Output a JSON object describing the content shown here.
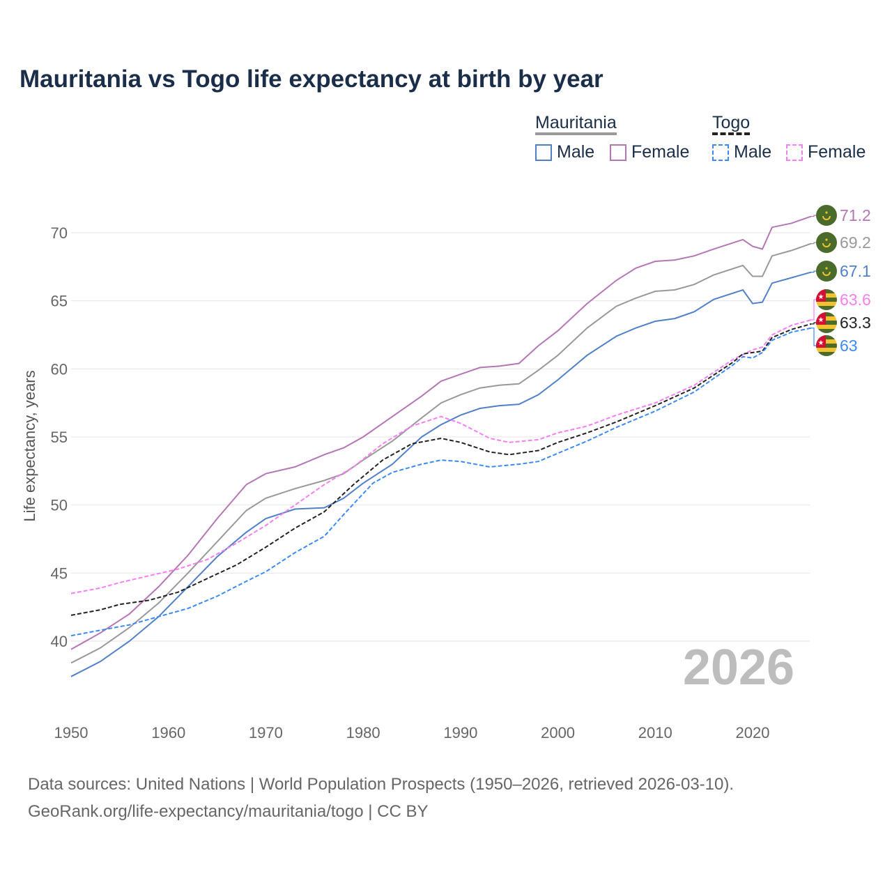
{
  "title": "Mauritania vs Togo life expectancy at birth by year",
  "legend": {
    "groups": [
      {
        "name": "Mauritania",
        "items": [
          "Male",
          "Female"
        ]
      },
      {
        "name": "Togo",
        "items": [
          "Male",
          "Female"
        ]
      }
    ]
  },
  "watermark_year": "2026",
  "source": {
    "line1": "Data sources: United Nations | World Population Prospects (1950–2026, retrieved 2026-03-10).",
    "line2": "GeoRank.org/life-expectancy/mauritania/togo | CC BY"
  },
  "chart_data": {
    "type": "line",
    "title": "Mauritania vs Togo life expectancy at birth by year",
    "xlabel": "",
    "ylabel": "Life expectancy, years",
    "xlim": [
      1950,
      2026
    ],
    "ylim": [
      36.5,
      72
    ],
    "xticks": [
      1950,
      1960,
      1970,
      1980,
      1990,
      2000,
      2010,
      2020
    ],
    "yticks": [
      40,
      45,
      50,
      55,
      60,
      65,
      70
    ],
    "grid": true,
    "series": [
      {
        "name": "Mauritania Female",
        "country": "Mauritania",
        "color": "#b576b5",
        "dash": false,
        "end_label": "71.2",
        "x": [
          1950,
          1953,
          1956,
          1959,
          1962,
          1965,
          1968,
          1970,
          1973,
          1976,
          1978,
          1980,
          1983,
          1986,
          1988,
          1990,
          1992,
          1994,
          1996,
          1998,
          2000,
          2003,
          2006,
          2008,
          2010,
          2012,
          2014,
          2016,
          2019,
          2020,
          2021,
          2022,
          2024,
          2026
        ],
        "y": [
          39.4,
          40.6,
          42.0,
          44.0,
          46.3,
          49.0,
          51.5,
          52.3,
          52.8,
          53.7,
          54.2,
          55.0,
          56.5,
          58.0,
          59.1,
          59.6,
          60.1,
          60.2,
          60.4,
          61.7,
          62.8,
          64.8,
          66.5,
          67.4,
          67.9,
          68.0,
          68.3,
          68.8,
          69.5,
          69.0,
          68.8,
          70.4,
          70.7,
          71.2
        ]
      },
      {
        "name": "Mauritania",
        "country": "Mauritania",
        "color": "#999999",
        "dash": false,
        "end_label": "69.2",
        "x": [
          1950,
          1953,
          1956,
          1959,
          1962,
          1965,
          1968,
          1970,
          1973,
          1976,
          1978,
          1980,
          1983,
          1986,
          1988,
          1990,
          1992,
          1994,
          1996,
          1998,
          2000,
          2003,
          2006,
          2008,
          2010,
          2012,
          2014,
          2016,
          2019,
          2020,
          2021,
          2022,
          2024,
          2026
        ],
        "y": [
          38.4,
          39.5,
          41.0,
          42.8,
          45.0,
          47.3,
          49.6,
          50.5,
          51.2,
          51.8,
          52.3,
          53.3,
          54.7,
          56.4,
          57.5,
          58.1,
          58.6,
          58.8,
          58.9,
          59.9,
          61.0,
          63.0,
          64.6,
          65.2,
          65.7,
          65.8,
          66.2,
          66.9,
          67.6,
          66.8,
          66.8,
          68.3,
          68.7,
          69.2
        ]
      },
      {
        "name": "Mauritania Male",
        "country": "Mauritania",
        "color": "#5080c8",
        "dash": false,
        "end_label": "67.1",
        "x": [
          1950,
          1953,
          1956,
          1959,
          1962,
          1965,
          1968,
          1970,
          1973,
          1976,
          1978,
          1980,
          1983,
          1986,
          1988,
          1990,
          1992,
          1994,
          1996,
          1998,
          2000,
          2003,
          2006,
          2008,
          2010,
          2012,
          2014,
          2016,
          2019,
          2020,
          2021,
          2022,
          2024,
          2026
        ],
        "y": [
          37.4,
          38.5,
          40.0,
          41.8,
          44.0,
          46.2,
          48.0,
          49.0,
          49.7,
          49.8,
          50.5,
          51.6,
          53.0,
          55.0,
          55.9,
          56.6,
          57.1,
          57.3,
          57.4,
          58.1,
          59.2,
          61.0,
          62.4,
          63.0,
          63.5,
          63.7,
          64.2,
          65.1,
          65.8,
          64.8,
          64.9,
          66.3,
          66.7,
          67.1
        ]
      },
      {
        "name": "Togo Female",
        "country": "Togo",
        "color": "#f57ff5",
        "dash": true,
        "end_label": "63.6",
        "x": [
          1950,
          1953,
          1955,
          1958,
          1961,
          1964,
          1967,
          1970,
          1973,
          1976,
          1979,
          1982,
          1985,
          1988,
          1990,
          1993,
          1995,
          1998,
          2000,
          2003,
          2006,
          2010,
          2014,
          2018,
          2020,
          2021,
          2022,
          2024,
          2026
        ],
        "y": [
          43.5,
          43.9,
          44.3,
          44.8,
          45.3,
          46.0,
          47.2,
          48.5,
          50.0,
          51.5,
          52.8,
          54.5,
          55.8,
          56.5,
          56.0,
          54.9,
          54.6,
          54.8,
          55.3,
          55.8,
          56.6,
          57.5,
          58.8,
          60.7,
          61.4,
          61.6,
          62.5,
          63.2,
          63.6
        ]
      },
      {
        "name": "Togo",
        "country": "Togo",
        "color": "#222222",
        "dash": true,
        "end_label": "63.3",
        "x": [
          1950,
          1953,
          1955,
          1958,
          1961,
          1964,
          1967,
          1970,
          1973,
          1976,
          1979,
          1982,
          1985,
          1988,
          1990,
          1993,
          1995,
          1998,
          2000,
          2003,
          2006,
          2010,
          2014,
          2018,
          2019,
          2021,
          2022,
          2024,
          2026
        ],
        "y": [
          41.9,
          42.3,
          42.7,
          43.0,
          43.6,
          44.6,
          45.6,
          46.9,
          48.3,
          49.5,
          51.5,
          53.3,
          54.5,
          54.9,
          54.6,
          53.9,
          53.7,
          54.0,
          54.6,
          55.3,
          56.1,
          57.3,
          58.6,
          60.5,
          61.1,
          61.3,
          62.3,
          62.9,
          63.3
        ]
      },
      {
        "name": "Togo Male",
        "country": "Togo",
        "color": "#3d8af7",
        "dash": true,
        "end_label": "63",
        "x": [
          1950,
          1953,
          1956,
          1959,
          1962,
          1965,
          1968,
          1970,
          1973,
          1976,
          1978,
          1981,
          1983,
          1986,
          1988,
          1990,
          1993,
          1996,
          1998,
          2000,
          2003,
          2006,
          2010,
          2014,
          2018,
          2019,
          2020,
          2021,
          2022,
          2024,
          2026
        ],
        "y": [
          40.4,
          40.8,
          41.2,
          41.8,
          42.4,
          43.3,
          44.4,
          45.1,
          46.5,
          47.7,
          49.3,
          51.6,
          52.4,
          53.0,
          53.3,
          53.2,
          52.8,
          53.0,
          53.2,
          53.8,
          54.7,
          55.7,
          56.9,
          58.3,
          60.3,
          60.9,
          60.8,
          61.2,
          62.1,
          62.7,
          63.0
        ]
      }
    ]
  }
}
